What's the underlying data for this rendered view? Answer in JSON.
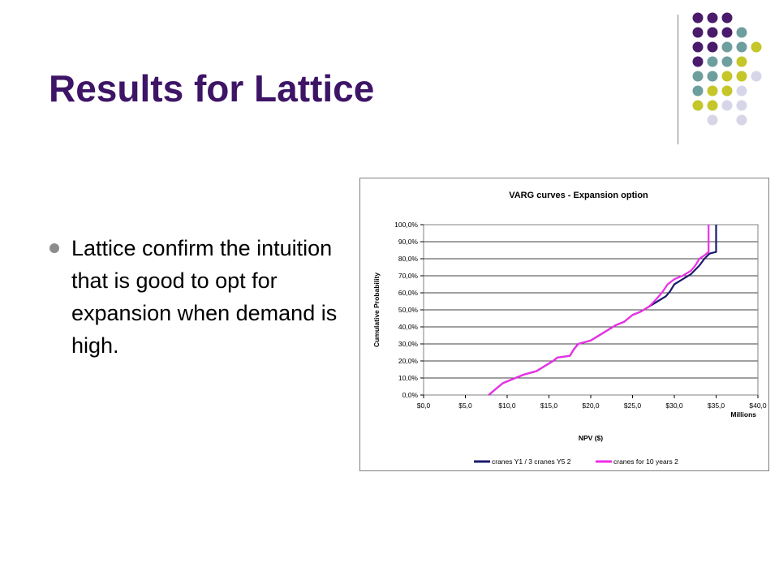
{
  "slide": {
    "title": "Results for Lattice",
    "bullets": [
      "Lattice confirm the intuition that is good to opt for expansion when demand is high."
    ],
    "dot_colors": [
      "#4a1a6b",
      "#6e9e9e",
      "#c4c62a",
      "#d6d6e8"
    ]
  },
  "chart_data": {
    "type": "line",
    "title": "VARG curves - Expansion option",
    "xlabel": "NPV ($)",
    "ylabel": "Cumulative Probability",
    "x_unit_label": "Millions",
    "xlim": [
      0,
      40
    ],
    "ylim": [
      0,
      1
    ],
    "x_ticks": [
      0,
      5,
      10,
      15,
      20,
      25,
      30,
      35,
      40
    ],
    "x_tick_labels": [
      "$0,0",
      "$5,0",
      "$10,0",
      "$15,0",
      "$20,0",
      "$25,0",
      "$30,0",
      "$35,0",
      "$40,0"
    ],
    "y_ticks": [
      0,
      0.1,
      0.2,
      0.3,
      0.4,
      0.5,
      0.6,
      0.7,
      0.8,
      0.9,
      1.0
    ],
    "y_tick_labels": [
      "0,0%",
      "10,0%",
      "20,0%",
      "30,0%",
      "40,0%",
      "50,0%",
      "60,0%",
      "70,0%",
      "80,0%",
      "90,0%",
      "100,0%"
    ],
    "grid": "horizontal",
    "legend_position": "bottom",
    "series": [
      {
        "name": "cranes Y1 / 3 cranes Y5 2",
        "color": "#1a1a6e",
        "points": [
          [
            7.8,
            0
          ],
          [
            8.5,
            0.03
          ],
          [
            9.5,
            0.07
          ],
          [
            11,
            0.1
          ],
          [
            12,
            0.12
          ],
          [
            13.5,
            0.14
          ],
          [
            14.5,
            0.17
          ],
          [
            15.5,
            0.2
          ],
          [
            16,
            0.22
          ],
          [
            17.5,
            0.23
          ],
          [
            18,
            0.27
          ],
          [
            18.5,
            0.3
          ],
          [
            20,
            0.32
          ],
          [
            21,
            0.35
          ],
          [
            22,
            0.38
          ],
          [
            23,
            0.41
          ],
          [
            24,
            0.43
          ],
          [
            25,
            0.47
          ],
          [
            26,
            0.49
          ],
          [
            27,
            0.52
          ],
          [
            28,
            0.55
          ],
          [
            29,
            0.58
          ],
          [
            29.5,
            0.61
          ],
          [
            30,
            0.65
          ],
          [
            31,
            0.68
          ],
          [
            32,
            0.71
          ],
          [
            33,
            0.76
          ],
          [
            33.6,
            0.8
          ],
          [
            34.2,
            0.83
          ],
          [
            35,
            0.84
          ],
          [
            35,
            1.0
          ]
        ]
      },
      {
        "name": "cranes for 10 years 2",
        "color": "#ee2ee8",
        "points": [
          [
            7.8,
            0
          ],
          [
            8.5,
            0.03
          ],
          [
            9.5,
            0.07
          ],
          [
            11,
            0.1
          ],
          [
            12,
            0.12
          ],
          [
            13.5,
            0.14
          ],
          [
            14.5,
            0.17
          ],
          [
            15.5,
            0.2
          ],
          [
            16,
            0.22
          ],
          [
            17.5,
            0.23
          ],
          [
            18,
            0.27
          ],
          [
            18.5,
            0.3
          ],
          [
            20,
            0.32
          ],
          [
            21,
            0.35
          ],
          [
            22,
            0.38
          ],
          [
            23,
            0.41
          ],
          [
            24,
            0.43
          ],
          [
            25,
            0.47
          ],
          [
            26,
            0.49
          ],
          [
            27,
            0.52
          ],
          [
            27.8,
            0.56
          ],
          [
            28.5,
            0.6
          ],
          [
            29.2,
            0.65
          ],
          [
            30,
            0.68
          ],
          [
            31,
            0.7
          ],
          [
            32,
            0.73
          ],
          [
            32.5,
            0.76
          ],
          [
            33,
            0.8
          ],
          [
            33.6,
            0.82
          ],
          [
            34.1,
            0.84
          ],
          [
            34.1,
            1.0
          ]
        ]
      }
    ]
  }
}
